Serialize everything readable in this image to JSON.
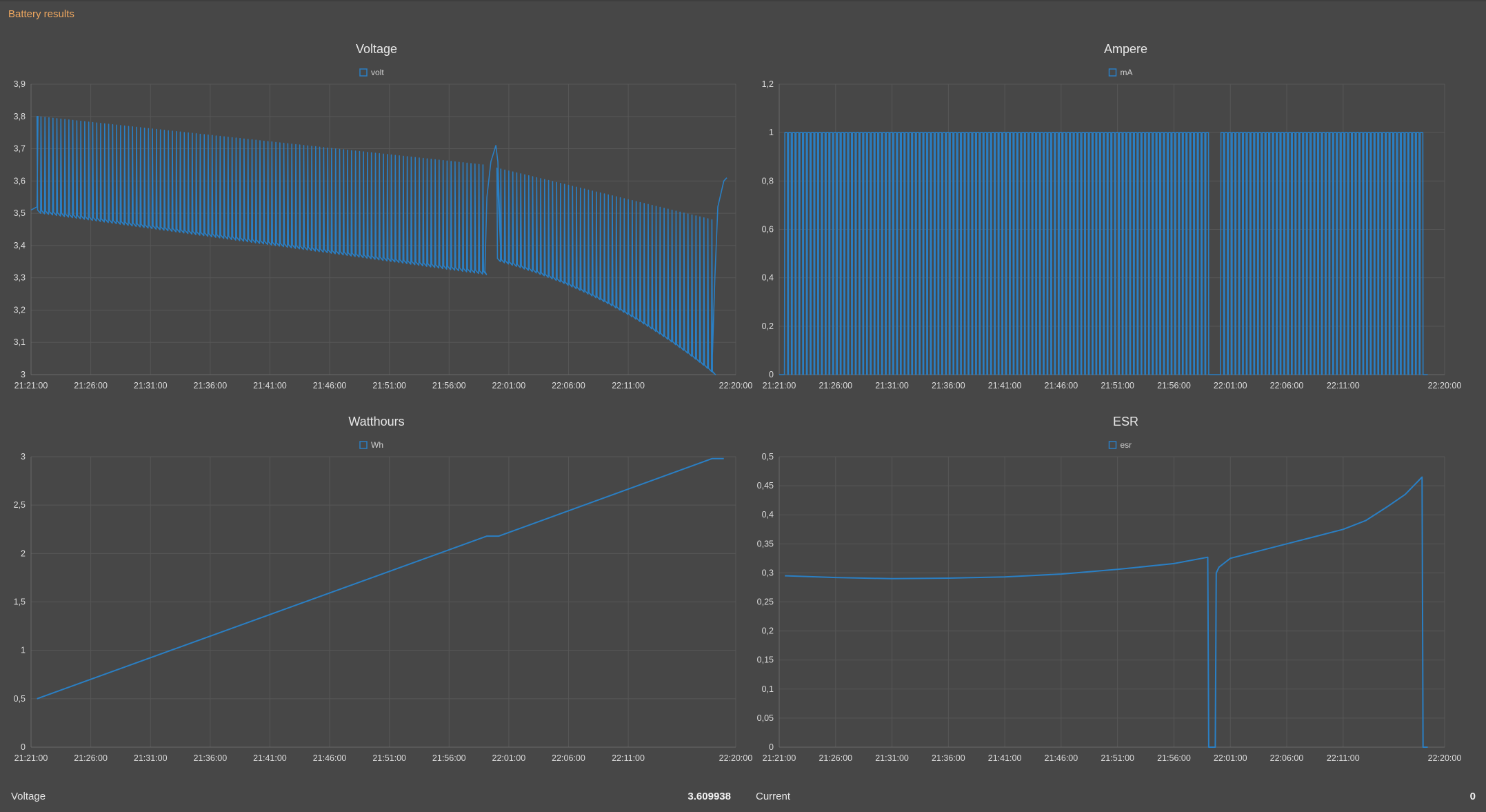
{
  "header": {
    "title": "Battery results"
  },
  "colors": {
    "series": "#2a7fc4",
    "background": "#474747",
    "accent": "#f0a860"
  },
  "footer": {
    "voltage_label": "Voltage",
    "voltage_value": "3.609938",
    "current_label": "Current",
    "current_value": "0"
  },
  "chart_data": [
    {
      "id": "voltage",
      "type": "line",
      "title": "Voltage",
      "legend": "volt",
      "legend_position": "top-center",
      "grid": true,
      "xlim": [
        "21:21:00",
        "22:20:00"
      ],
      "x_ticks": [
        "21:21:00",
        "21:26:00",
        "21:31:00",
        "21:36:00",
        "21:41:00",
        "21:46:00",
        "21:51:00",
        "21:56:00",
        "22:01:00",
        "22:06:00",
        "22:11:00",
        "22:20:00"
      ],
      "ylim": [
        3,
        3.9
      ],
      "y_ticks": [
        "3",
        "3,1",
        "3,2",
        "3,3",
        "3,4",
        "3,5",
        "3,6",
        "3,7",
        "3,8",
        "3,9"
      ],
      "series": [
        {
          "pattern": "pulsed",
          "cycle_seconds": 20,
          "segments": [
            {
              "start": "21:21:30",
              "end": "21:59:00",
              "rest_start": 3.8,
              "rest_end": 3.65,
              "load_start": 3.51,
              "load_end": 3.32
            },
            {
              "start": "22:00:00",
              "end": "22:18:00",
              "rest_start": 3.64,
              "rest_end": 3.48,
              "load_start": 3.36,
              "load_end": 3.01,
              "curve": 2.2
            }
          ],
          "points": [
            [
              "21:21:00",
              3.51
            ],
            [
              "21:21:30",
              3.52
            ],
            [
              "21:21:35",
              3.8
            ],
            [
              "21:59:00",
              3.32
            ],
            [
              "21:59:10",
              3.55
            ],
            [
              "21:59:30",
              3.66
            ],
            [
              "21:59:55",
              3.71
            ],
            [
              "22:00:05",
              3.66
            ],
            [
              "22:00:20",
              3.38
            ],
            [
              "22:18:00",
              3.01
            ],
            [
              "22:18:15",
              3.3
            ],
            [
              "22:18:30",
              3.52
            ],
            [
              "22:19:00",
              3.6
            ],
            [
              "22:19:15",
              3.61
            ]
          ]
        }
      ]
    },
    {
      "id": "ampere",
      "type": "line",
      "title": "Ampere",
      "legend": "mA",
      "legend_position": "top-center",
      "grid": true,
      "xlim": [
        "21:21:00",
        "22:20:00"
      ],
      "x_ticks": [
        "21:21:00",
        "21:26:00",
        "21:31:00",
        "21:36:00",
        "21:41:00",
        "21:46:00",
        "21:51:00",
        "21:56:00",
        "22:01:00",
        "22:06:00",
        "22:11:00",
        "22:20:00"
      ],
      "ylim": [
        0,
        1.2
      ],
      "y_ticks": [
        "0",
        "0,2",
        "0,4",
        "0,6",
        "0,8",
        "1",
        "1,2"
      ],
      "series": [
        {
          "pattern": "pulsed",
          "cycle_seconds": 20,
          "high": 1,
          "low": 0,
          "segments": [
            {
              "start": "21:21:30",
              "end": "21:59:00"
            },
            {
              "start": "22:00:10",
              "end": "22:18:00"
            }
          ]
        }
      ]
    },
    {
      "id": "watthours",
      "type": "line",
      "title": "Watthours",
      "legend": "Wh",
      "legend_position": "top-center",
      "grid": true,
      "xlim": [
        "21:21:00",
        "22:20:00"
      ],
      "x_ticks": [
        "21:21:00",
        "21:26:00",
        "21:31:00",
        "21:36:00",
        "21:41:00",
        "21:46:00",
        "21:51:00",
        "21:56:00",
        "22:01:00",
        "22:06:00",
        "22:11:00",
        "22:20:00"
      ],
      "ylim": [
        0,
        3
      ],
      "y_ticks": [
        "0",
        "0,5",
        "1",
        "1,5",
        "2",
        "2,5",
        "3"
      ],
      "series": [
        {
          "points": [
            [
              "21:21:30",
              0.5
            ],
            [
              "21:59:10",
              2.18
            ],
            [
              "22:00:10",
              2.18
            ],
            [
              "22:18:00",
              2.98
            ],
            [
              "22:19:00",
              2.98
            ]
          ]
        }
      ]
    },
    {
      "id": "esr",
      "type": "line",
      "title": "ESR",
      "legend": "esr",
      "legend_position": "top-center",
      "grid": true,
      "xlim": [
        "21:21:00",
        "22:20:00"
      ],
      "x_ticks": [
        "21:21:00",
        "21:26:00",
        "21:31:00",
        "21:36:00",
        "21:41:00",
        "21:46:00",
        "21:51:00",
        "21:56:00",
        "22:01:00",
        "22:06:00",
        "22:11:00",
        "22:20:00"
      ],
      "ylim": [
        0,
        0.5
      ],
      "y_ticks": [
        "0",
        "0,05",
        "0,1",
        "0,15",
        "0,2",
        "0,25",
        "0,3",
        "0,35",
        "0,4",
        "0,45",
        "0,5"
      ],
      "series": [
        {
          "points": [
            [
              "21:21:30",
              0.295
            ],
            [
              "21:26:00",
              0.292
            ],
            [
              "21:31:00",
              0.29
            ],
            [
              "21:36:00",
              0.291
            ],
            [
              "21:41:00",
              0.293
            ],
            [
              "21:46:00",
              0.298
            ],
            [
              "21:51:00",
              0.306
            ],
            [
              "21:56:00",
              0.316
            ],
            [
              "21:59:00",
              0.327
            ],
            [
              "21:59:05",
              0.0
            ],
            [
              "21:59:40",
              0.0
            ],
            [
              "21:59:45",
              0.3
            ],
            [
              "22:00:00",
              0.31
            ],
            [
              "22:01:00",
              0.325
            ],
            [
              "22:06:00",
              0.35
            ],
            [
              "22:11:00",
              0.375
            ],
            [
              "22:13:00",
              0.39
            ],
            [
              "22:15:00",
              0.415
            ],
            [
              "22:16:30",
              0.435
            ],
            [
              "22:18:00",
              0.465
            ],
            [
              "22:18:05",
              0.0
            ],
            [
              "22:18:30",
              0.0
            ]
          ]
        }
      ]
    }
  ]
}
